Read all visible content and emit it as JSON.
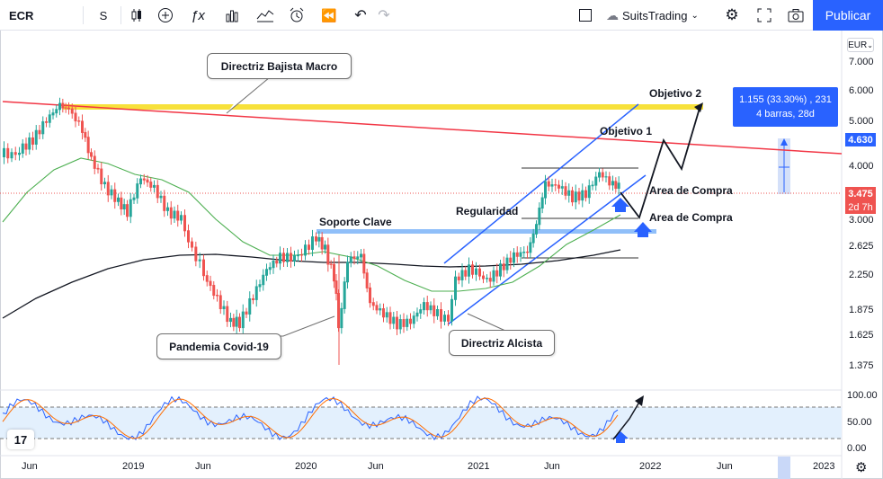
{
  "toolbar": {
    "symbol": "ECR",
    "interval": "S",
    "account_name": "SuitsTrading",
    "publish_label": "Publicar",
    "icons": [
      "search-icon",
      "candles-icon",
      "add-icon",
      "indicators-icon",
      "templates-icon",
      "compare-icon",
      "alert-icon",
      "replay-icon",
      "undo-icon",
      "redo-icon",
      "layout-icon",
      "settings-icon",
      "fullscreen-icon",
      "camera-icon"
    ]
  },
  "chart": {
    "currency": "EUR",
    "price_scale": [
      "7.000",
      "6.000",
      "5.000",
      "4.000",
      "3.000",
      "2.625",
      "2.250",
      "1.875",
      "1.625",
      "1.375"
    ],
    "osc_scale": [
      "100.00",
      "50.00",
      "0.00"
    ],
    "time_labels": [
      "Jun",
      "2019",
      "Jun",
      "2020",
      "Jun",
      "2021",
      "Jun",
      "2022",
      "Jun",
      "2023"
    ],
    "current_price": "3.475",
    "countdown": "2d 7h",
    "target_price": "4.630",
    "measure": {
      "line1": "1.155 (33.30%) , 231",
      "line2": "4 barras, 28d"
    },
    "annotations": {
      "directriz_bajista": "Directriz Bajista Macro",
      "pandemia": "Pandemia Covid-19",
      "directriz_alcista": "Directriz Alcista",
      "soporte": "Soporte Clave",
      "regularidad": "Regularidad",
      "objetivo1": "Objetivo 1",
      "objetivo2": "Objetivo 2",
      "area1": "Area de Compra",
      "area2": "Area de Compra"
    },
    "logo": "17",
    "colors": {
      "up": "#26a69a",
      "down": "#ef5350",
      "accent": "#2962ff",
      "resistance": "#f23645",
      "support_band": "#90bff9",
      "yellow_band": "#f7e13b"
    }
  }
}
